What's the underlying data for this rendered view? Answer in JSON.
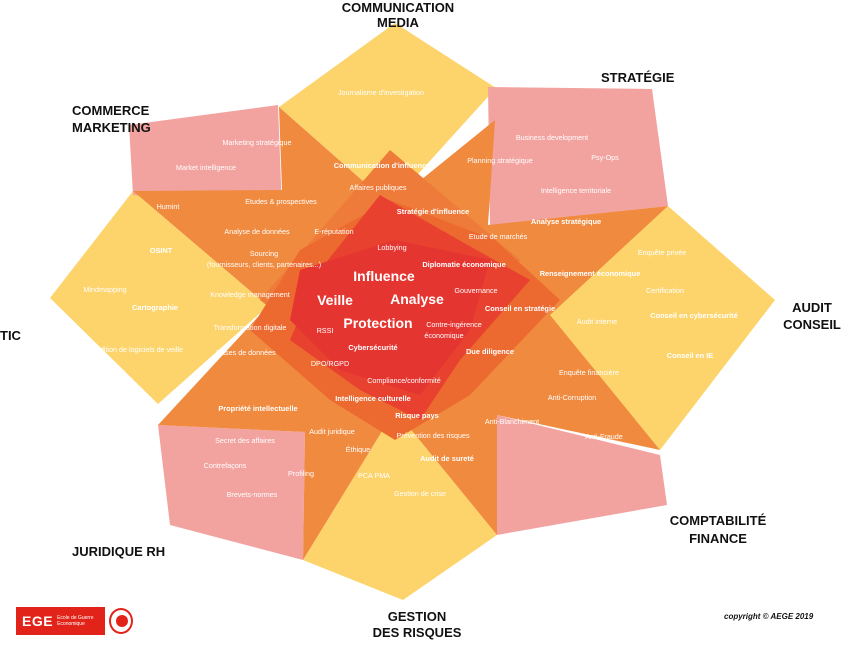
{
  "sectors": {
    "communication": [
      "COMMUNICATION",
      "MEDIA"
    ],
    "strategie": [
      "STRATÉGIE"
    ],
    "commerce": [
      "COMMERCE",
      "MARKETING"
    ],
    "tic": [
      "TIC"
    ],
    "audit": [
      "AUDIT",
      "CONSEIL"
    ],
    "juridique": [
      "JURIDIQUE RH"
    ],
    "comptabilite": [
      "COMPTABILITÉ",
      "FINANCE"
    ],
    "gestion": [
      "GESTION",
      "DES RISQUES"
    ]
  },
  "center_words": [
    "Influence",
    "Veille",
    "Analyse",
    "Protection"
  ],
  "terms": [
    "Journalisme d'investigation",
    "Business development",
    "Psy-Ops",
    "Planning stratégique",
    "Intelligence territoriale",
    "Marketing stratégique",
    "Market intelligence",
    "Communication d'influence",
    "Affaires publiques",
    "Etudes & prospectives",
    "Humint",
    "Analyse de données",
    "E-réputation",
    "Stratégie d'influence",
    "Analyse stratégique",
    "Etude de marchés",
    "Enquête privée",
    "OSINT",
    "Lobbying",
    "Sourcing",
    "(fournisseurs, clients, partenaires...)",
    "Diplomatie économique",
    "Renseignement économique",
    "Mindmapping",
    "Cartographie",
    "Knowledge management",
    "Gouvernance",
    "Certification",
    "Conseil en stratégie",
    "Conseil en cybersécurité",
    "Audit interne",
    "Transformation digitale",
    "RSSI",
    "Contre-ingérence",
    "économique",
    "Edition de logiciels de veille",
    "Bases de données",
    "Cybersécurité",
    "Due diligence",
    "Conseil en IE",
    "DPO/RGPD",
    "Enquête financière",
    "Compliance/conformité",
    "Intelligence culturelle",
    "Propriété intellectuelle",
    "Anti-Corruption",
    "Risque pays",
    "Anti-Blanchiment",
    "Audit juridique",
    "Prévention des risques",
    "Anti-Fraude",
    "Secret des affaires",
    "Éthique",
    "Audit de sureté",
    "Contrefaçons",
    "Profiling",
    "PCA PMA",
    "Brevets-normes",
    "Gestion de crise"
  ],
  "logo": {
    "abbr": "EGE",
    "full": "Ecole de Guerre Economique"
  },
  "copyright": "copyright © AEGE 2019",
  "colors": {
    "yellow": "#fcd46b",
    "pink": "#f2a3a0",
    "orange": "#f08a3f",
    "dark_orange": "#ec6a30",
    "red": "#e8412f",
    "inner_red": "#e53530"
  }
}
